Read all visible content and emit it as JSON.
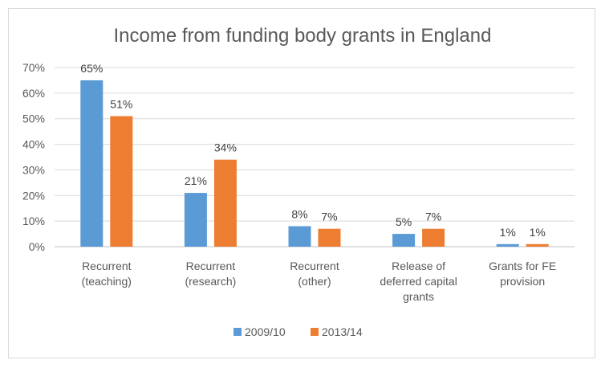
{
  "chart_data": {
    "type": "bar",
    "title": "Income from funding body grants in England",
    "categories": [
      [
        "Recurrent",
        "(teaching)"
      ],
      [
        "Recurrent",
        "(research)"
      ],
      [
        "Recurrent",
        "(other)"
      ],
      [
        "Release of",
        "deferred capital",
        "grants"
      ],
      [
        "Grants for FE",
        "provision"
      ]
    ],
    "series": [
      {
        "name": "2009/10",
        "values": [
          65,
          21,
          8,
          5,
          1
        ],
        "labels": [
          "65%",
          "21%",
          "8%",
          "5%",
          "1%"
        ],
        "color": "#5b9bd5"
      },
      {
        "name": "2013/14",
        "values": [
          51,
          34,
          7,
          7,
          1
        ],
        "labels": [
          "51%",
          "34%",
          "7%",
          "7%",
          "1%"
        ],
        "color": "#ed7d31"
      }
    ],
    "yticks": [
      "0%",
      "10%",
      "20%",
      "30%",
      "40%",
      "50%",
      "60%",
      "70%"
    ],
    "ylim": [
      0,
      70
    ],
    "grid": true,
    "legend_position": "bottom"
  }
}
